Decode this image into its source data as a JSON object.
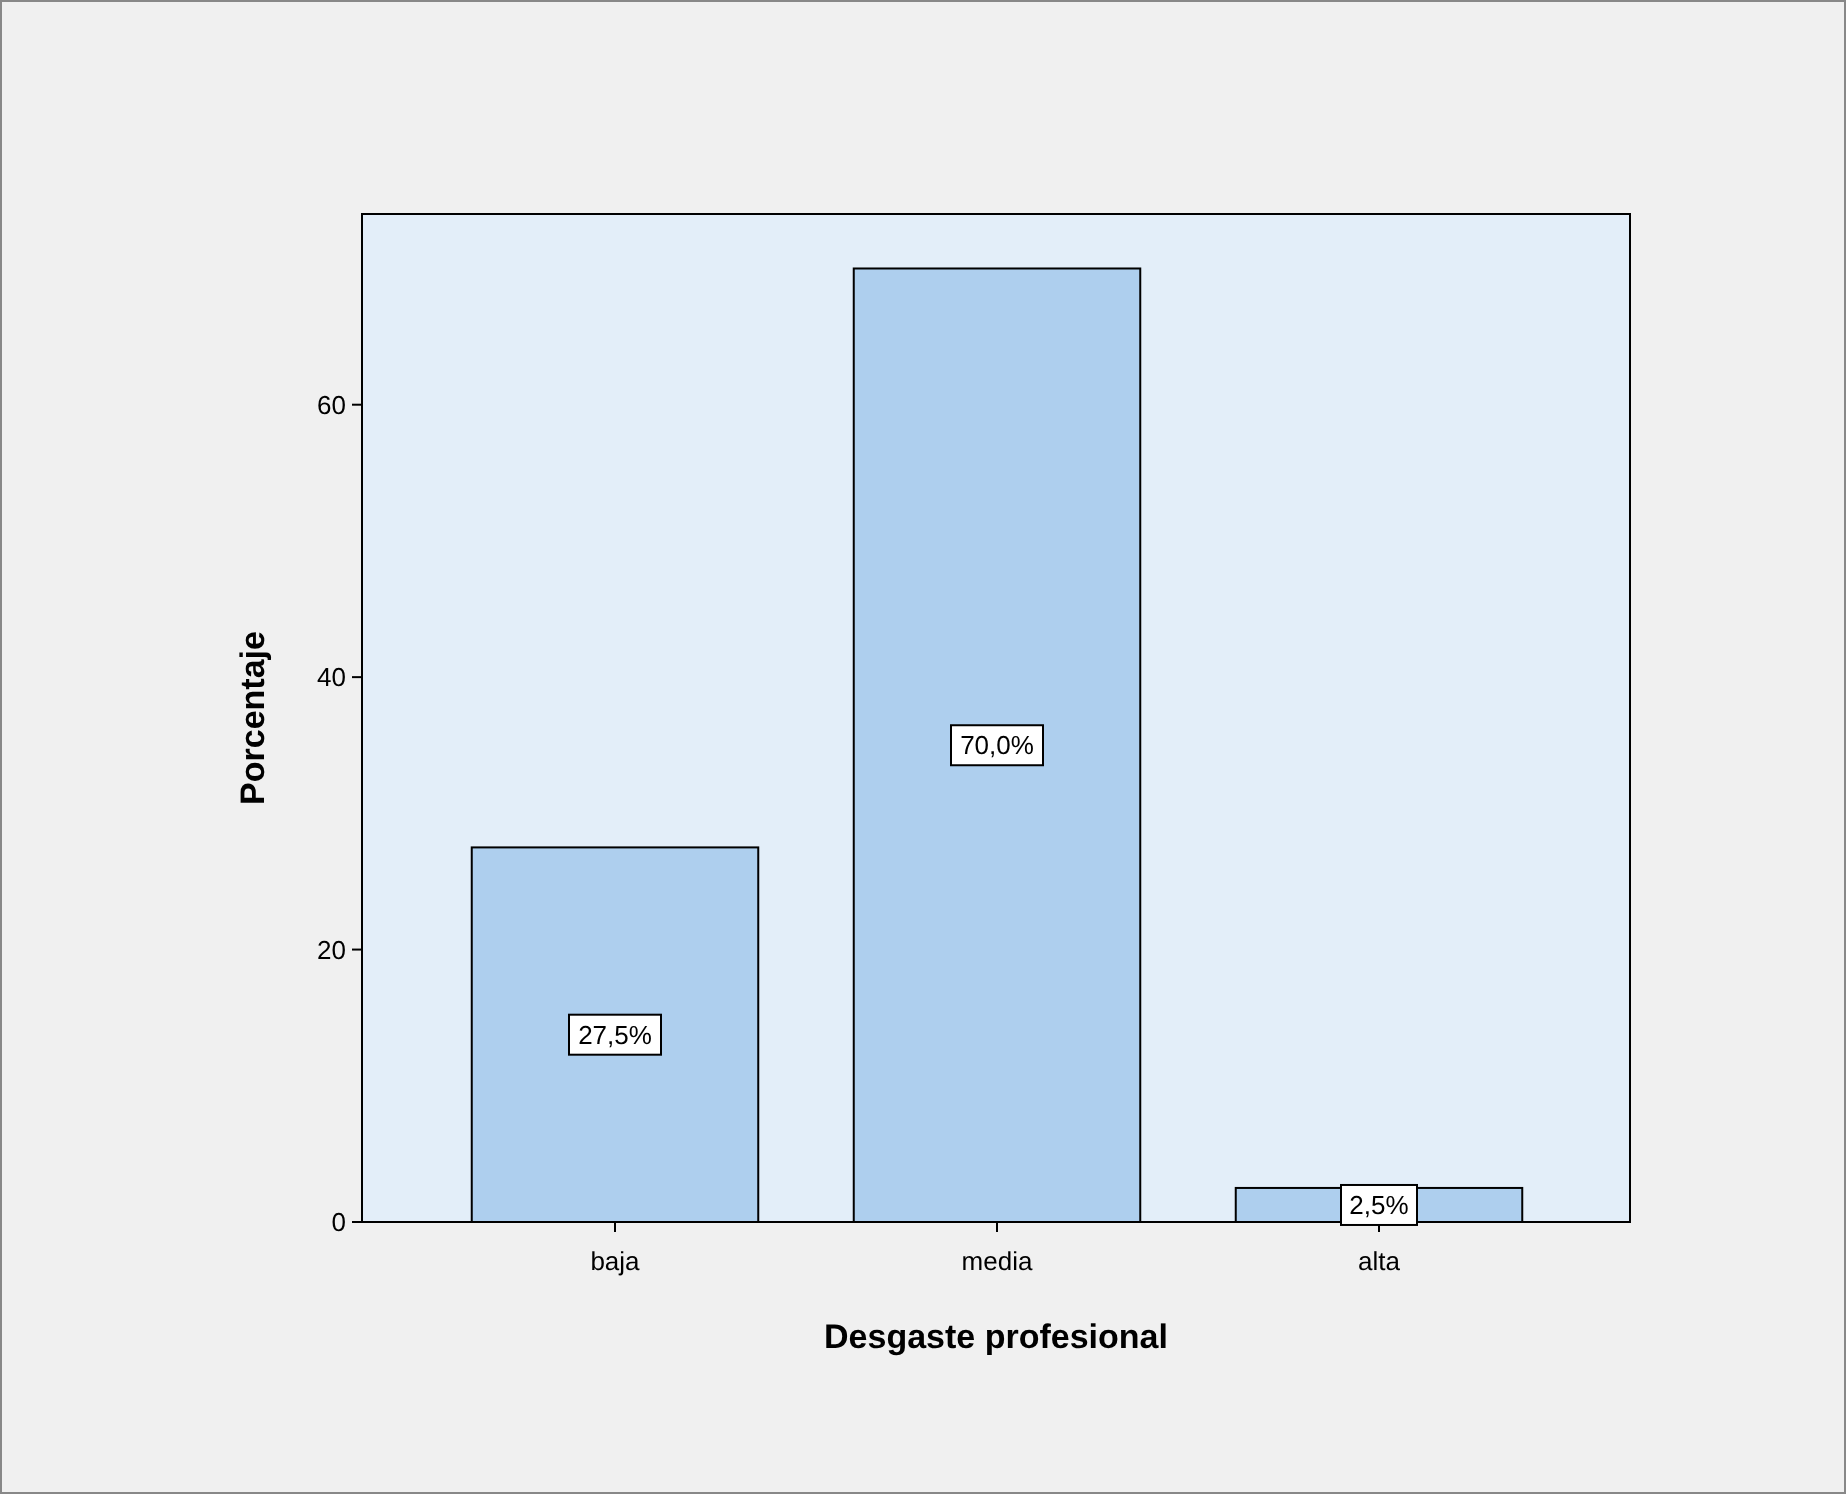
{
  "chart_data": {
    "type": "bar",
    "xlabel": "Desgaste profesional",
    "ylabel": "Porcentaje",
    "categories": [
      "baja",
      "media",
      "alta"
    ],
    "values": [
      27.5,
      70.0,
      2.5
    ],
    "value_labels": [
      "27,5%",
      "70,0%",
      "2,5%"
    ],
    "color": "#aecfee",
    "ylim": [
      0,
      74
    ],
    "yticks": [
      0,
      20,
      40,
      60
    ]
  }
}
